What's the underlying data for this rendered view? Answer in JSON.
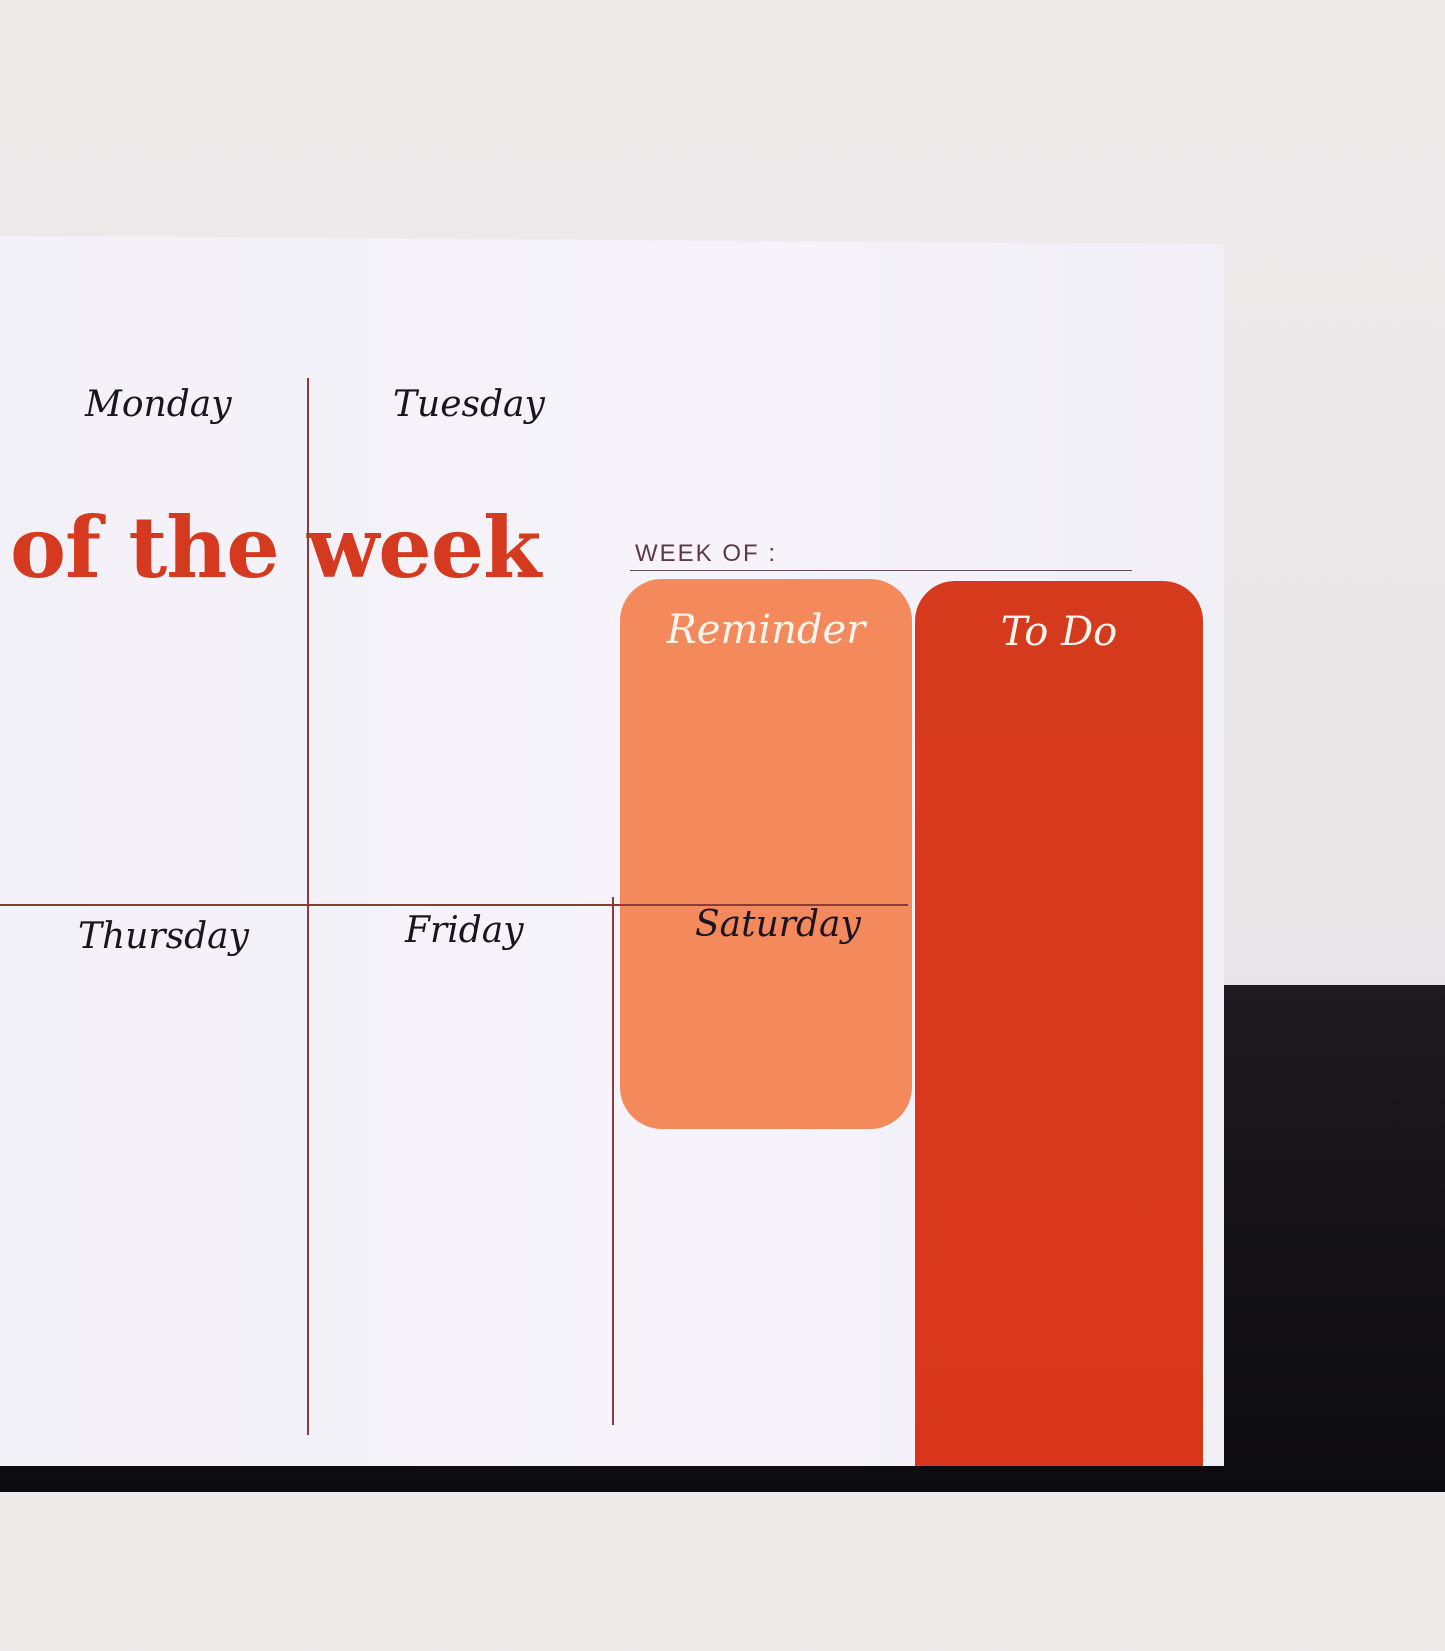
{
  "planner": {
    "title": "of the week",
    "week_of_label": "WEEK OF :",
    "reminder_label": "Reminder",
    "todo_label": "To Do",
    "days": [
      "Monday",
      "Tuesday",
      "Thursday",
      "Friday",
      "Saturday"
    ]
  },
  "colors": {
    "title": "#d53a20",
    "reminder": "#f48a5c",
    "todo": "#d9381c",
    "paper": "#f4f2f8",
    "table": "#141215"
  }
}
